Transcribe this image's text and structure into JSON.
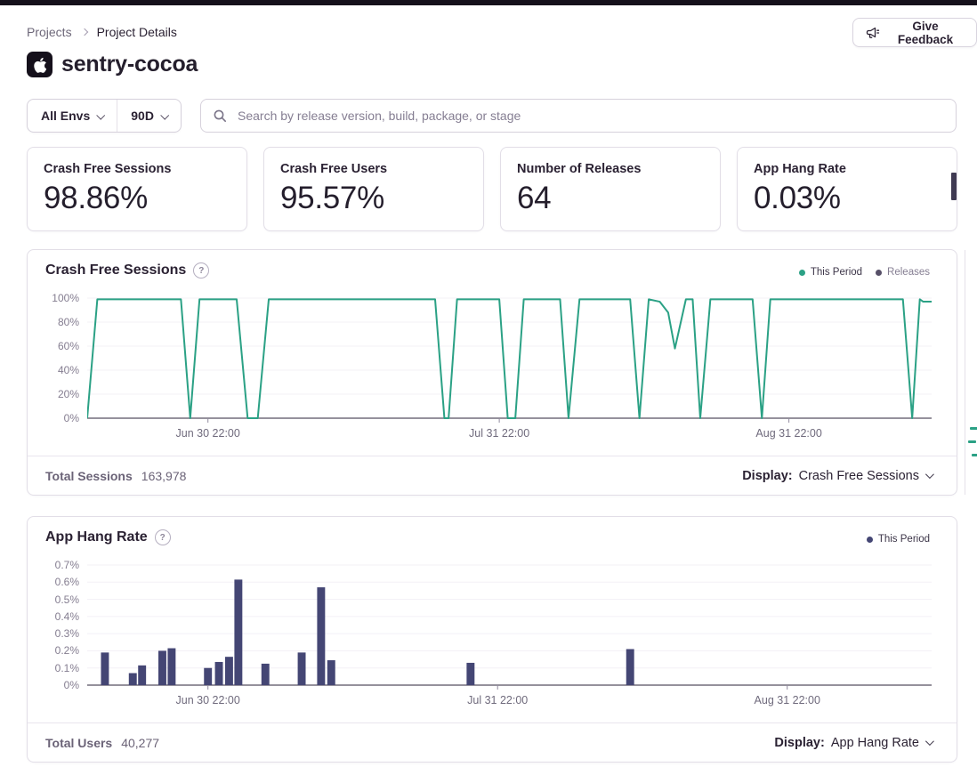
{
  "breadcrumb": {
    "items": [
      "Projects",
      "Project Details"
    ]
  },
  "header": {
    "project_name": "sentry-cocoa",
    "feedback_label": "Give Feedback"
  },
  "filters": {
    "env_label": "All Envs",
    "period_label": "90D",
    "search_placeholder": "Search by release version, build, package, or stage"
  },
  "stats": [
    {
      "label": "Crash Free Sessions",
      "value": "98.86%"
    },
    {
      "label": "Crash Free Users",
      "value": "95.57%"
    },
    {
      "label": "Number of Releases",
      "value": "64"
    },
    {
      "label": "App Hang Rate",
      "value": "0.03%"
    }
  ],
  "icons": {
    "help_glyph": "?"
  },
  "charts": [
    {
      "title": "Crash Free Sessions",
      "legend": [
        {
          "label": "This Period",
          "color": "#2ba185"
        },
        {
          "label": "Releases",
          "color": "#575068"
        }
      ],
      "total_label": "Total Sessions",
      "total_value": "163,978",
      "display_label": "Display:",
      "display_value": "Crash Free Sessions"
    },
    {
      "title": "App Hang Rate",
      "legend": [
        {
          "label": "This Period",
          "color": "#444674"
        }
      ],
      "total_label": "Total Users",
      "total_value": "40,277",
      "display_label": "Display:",
      "display_value": "App Hang Rate"
    }
  ],
  "chart_data": [
    {
      "type": "line",
      "title": "Crash Free Sessions",
      "color": "#2ba185",
      "ymax": 100,
      "ylim": [
        0,
        100
      ],
      "y_ticks": [
        "100%",
        "80%",
        "60%",
        "40%",
        "20%",
        "0%"
      ],
      "x_ticks": [
        {
          "label": "Jun 30 22:00",
          "f": 0.143
        },
        {
          "label": "Jul 31 22:00",
          "f": 0.488
        },
        {
          "label": "Aug 31 22:00",
          "f": 0.831
        }
      ],
      "points": [
        [
          0.0,
          0
        ],
        [
          0.012,
          99
        ],
        [
          0.111,
          99
        ],
        [
          0.122,
          0
        ],
        [
          0.133,
          99
        ],
        [
          0.177,
          99
        ],
        [
          0.19,
          0
        ],
        [
          0.202,
          0
        ],
        [
          0.215,
          99
        ],
        [
          0.412,
          99
        ],
        [
          0.423,
          0
        ],
        [
          0.428,
          0
        ],
        [
          0.438,
          99
        ],
        [
          0.488,
          99
        ],
        [
          0.498,
          0
        ],
        [
          0.507,
          0
        ],
        [
          0.517,
          99
        ],
        [
          0.56,
          99
        ],
        [
          0.57,
          0
        ],
        [
          0.583,
          99
        ],
        [
          0.643,
          99
        ],
        [
          0.654,
          0
        ],
        [
          0.665,
          99
        ],
        [
          0.678,
          97
        ],
        [
          0.688,
          88
        ],
        [
          0.696,
          58
        ],
        [
          0.709,
          99
        ],
        [
          0.717,
          99
        ],
        [
          0.726,
          0
        ],
        [
          0.738,
          99
        ],
        [
          0.788,
          99
        ],
        [
          0.799,
          0
        ],
        [
          0.809,
          99
        ],
        [
          0.966,
          99
        ],
        [
          0.977,
          0
        ],
        [
          0.986,
          99
        ],
        [
          0.99,
          97
        ],
        [
          1.0,
          97
        ]
      ]
    },
    {
      "type": "bar",
      "title": "App Hang Rate",
      "color": "#444674",
      "ymax": 0.7,
      "ylim": [
        0,
        0.7
      ],
      "y_ticks": [
        "0.7%",
        "0.6%",
        "0.5%",
        "0.4%",
        "0.3%",
        "0.2%",
        "0.1%",
        "0%"
      ],
      "x_ticks": [
        {
          "label": "Jun 30 22:00",
          "f": 0.143
        },
        {
          "label": "Jul 31 22:00",
          "f": 0.486
        },
        {
          "label": "Aug 31 22:00",
          "f": 0.829
        }
      ],
      "bars": [
        [
          0.021,
          0.19
        ],
        [
          0.054,
          0.07
        ],
        [
          0.065,
          0.115
        ],
        [
          0.089,
          0.2
        ],
        [
          0.1,
          0.215
        ],
        [
          0.143,
          0.1
        ],
        [
          0.156,
          0.135
        ],
        [
          0.168,
          0.165
        ],
        [
          0.179,
          0.615
        ],
        [
          0.211,
          0.125
        ],
        [
          0.254,
          0.19
        ],
        [
          0.277,
          0.57
        ],
        [
          0.289,
          0.145
        ],
        [
          0.454,
          0.13
        ],
        [
          0.643,
          0.21
        ]
      ]
    }
  ]
}
